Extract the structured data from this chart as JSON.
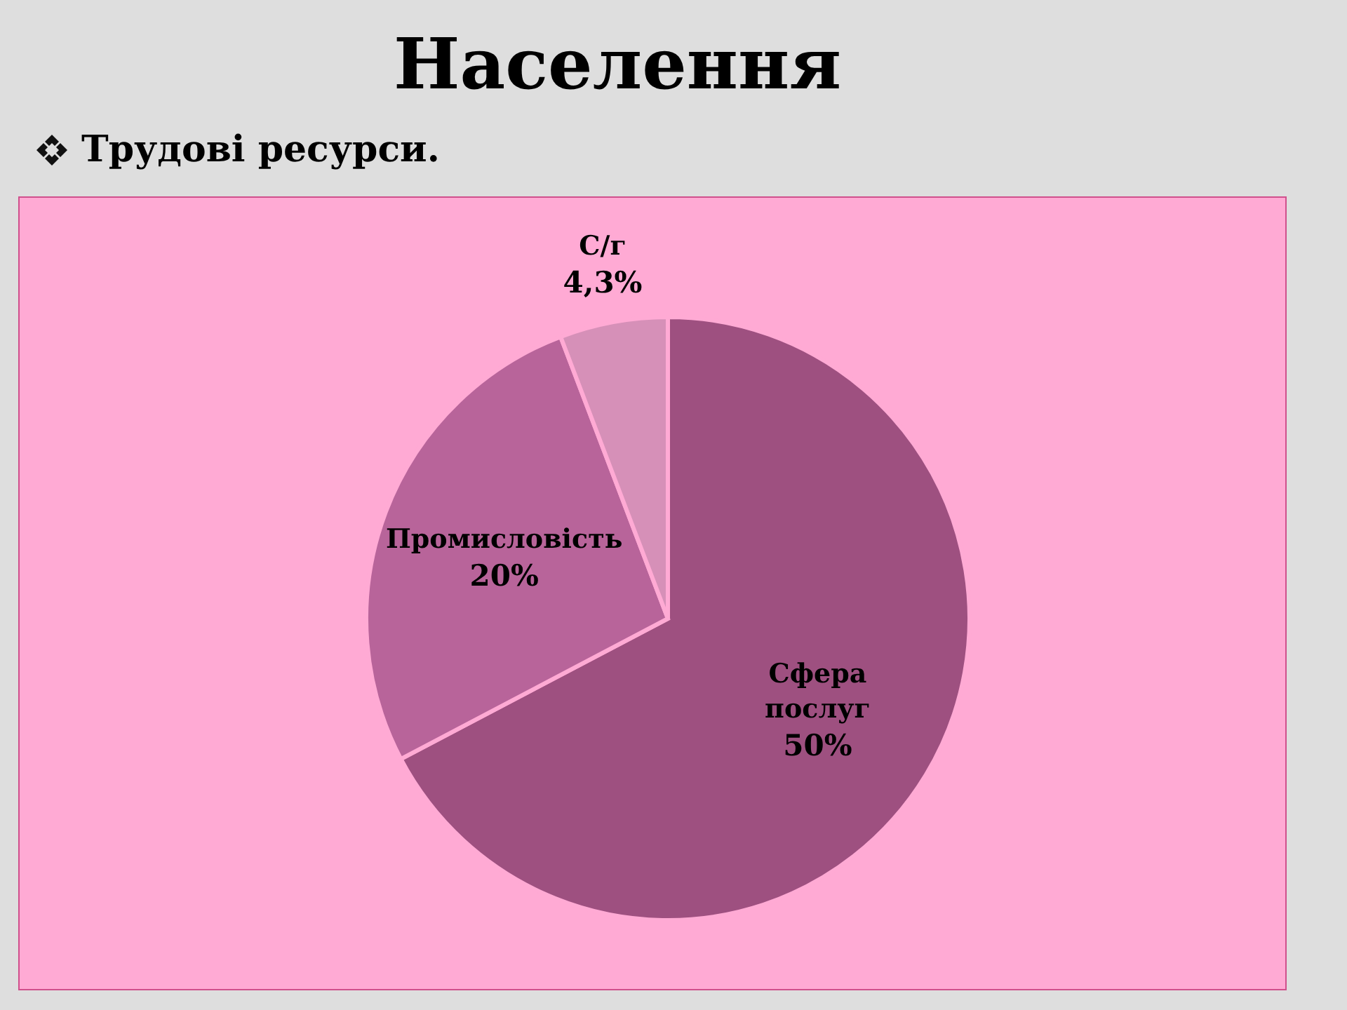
{
  "chart_data": {
    "type": "pie",
    "title": "Населення",
    "subtitle": "Трудові ресурси.",
    "categories": [
      "Сфера послуг",
      "Промисловість",
      "С/г"
    ],
    "values": [
      50,
      20,
      4.3
    ],
    "colors": [
      "#9e5080",
      "#b8649a",
      "#d690b8"
    ],
    "value_labels": [
      "50%",
      "20%",
      "4,3%"
    ]
  }
}
